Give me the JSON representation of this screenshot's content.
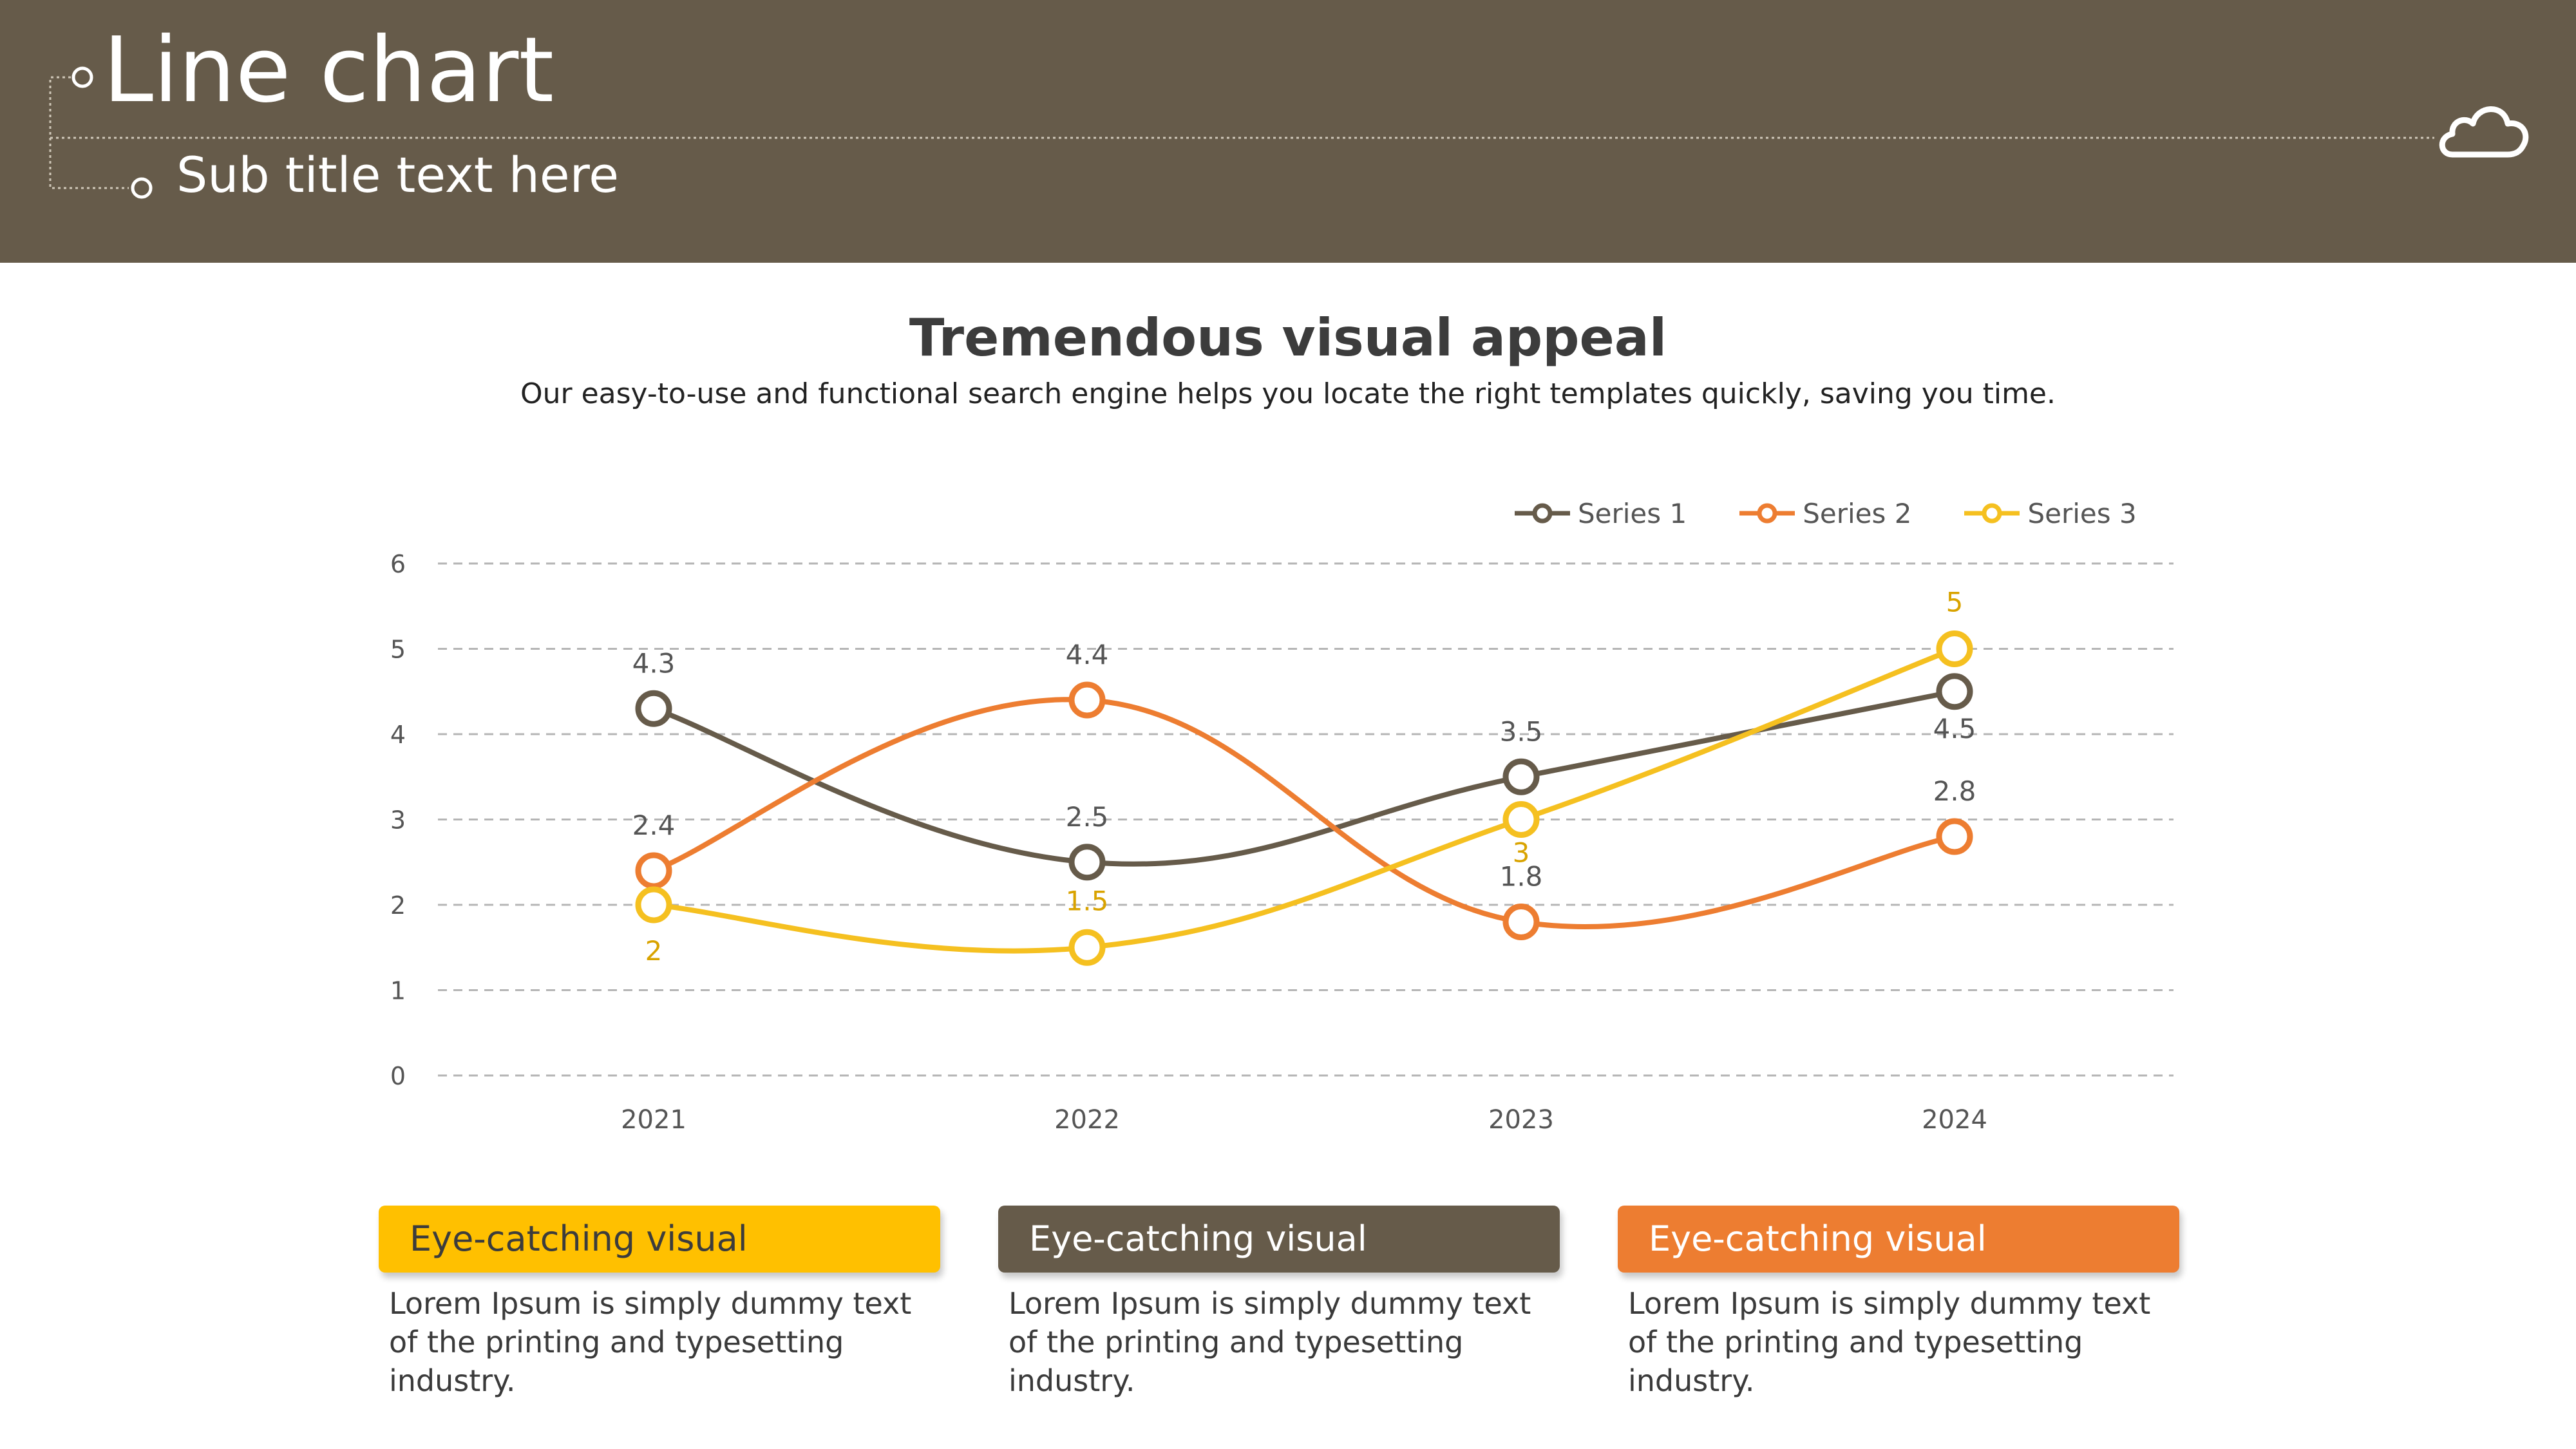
{
  "header": {
    "title": "Line chart",
    "subtitle": "Sub title text here",
    "icon": "cloud-icon",
    "background": "#665b4a"
  },
  "section": {
    "title": "Tremendous visual appeal",
    "description": "Our easy-to-use and functional search engine helps you locate the right templates quickly, saving you time."
  },
  "chart_data": {
    "type": "line",
    "categories": [
      "2021",
      "2022",
      "2023",
      "2024"
    ],
    "series": [
      {
        "name": "Series 1",
        "values": [
          4.3,
          2.5,
          3.5,
          4.5
        ],
        "color": "#665b4a"
      },
      {
        "name": "Series 2",
        "values": [
          2.4,
          4.4,
          1.8,
          2.8
        ],
        "color": "#ed7d31"
      },
      {
        "name": "Series 3",
        "values": [
          2,
          1.5,
          3,
          5
        ],
        "color": "#f5c020",
        "label_color": "#d9a300"
      }
    ],
    "y_ticks": [
      "0",
      "1",
      "2",
      "3",
      "4",
      "5",
      "6"
    ],
    "ylim": [
      0,
      6
    ],
    "grid": true,
    "smooth": true,
    "legend": "top-right",
    "data_labels": true
  },
  "cards": [
    {
      "title": "Eye-catching visual",
      "text": "Lorem Ipsum is simply dummy text of the printing and typesetting industry.",
      "color": "#ffc000"
    },
    {
      "title": "Eye-catching visual",
      "text": "Lorem Ipsum is simply dummy text of the printing and typesetting industry.",
      "color": "#665b4a"
    },
    {
      "title": "Eye-catching visual",
      "text": "Lorem Ipsum is simply dummy text of the printing and typesetting industry.",
      "color": "#ed7d31"
    }
  ]
}
